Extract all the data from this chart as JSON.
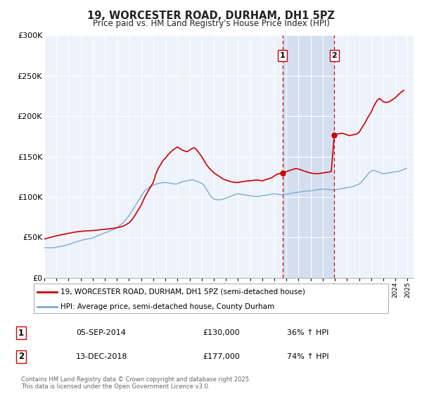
{
  "title": "19, WORCESTER ROAD, DURHAM, DH1 5PZ",
  "subtitle": "Price paid vs. HM Land Registry's House Price Index (HPI)",
  "background_color": "#ffffff",
  "plot_bg_color": "#eef2fa",
  "grid_color": "#ffffff",
  "ylim": [
    0,
    300000
  ],
  "yticks": [
    0,
    50000,
    100000,
    150000,
    200000,
    250000,
    300000
  ],
  "ytick_labels": [
    "£0",
    "£50K",
    "£100K",
    "£150K",
    "£200K",
    "£250K",
    "£300K"
  ],
  "xlim_start": 1995.0,
  "xlim_end": 2025.5,
  "sale1_x": 2014.674,
  "sale1_y": 130000,
  "sale1_label": "1",
  "sale1_date": "05-SEP-2014",
  "sale1_price": "£130,000",
  "sale1_hpi": "36% ↑ HPI",
  "sale2_x": 2018.954,
  "sale2_y": 177000,
  "sale2_label": "2",
  "sale2_date": "13-DEC-2018",
  "sale2_price": "£177,000",
  "sale2_hpi": "74% ↑ HPI",
  "shade_color": "#c8d8ee",
  "vline_color": "#cc0000",
  "marker_color": "#cc0000",
  "red_line_color": "#cc0000",
  "blue_line_color": "#7aadd4",
  "legend_label_red": "19, WORCESTER ROAD, DURHAM, DH1 5PZ (semi-detached house)",
  "legend_label_blue": "HPI: Average price, semi-detached house, County Durham",
  "footnote": "Contains HM Land Registry data © Crown copyright and database right 2025.\nThis data is licensed under the Open Government Licence v3.0.",
  "hpi_years": [
    1995.0,
    1995.08,
    1995.17,
    1995.25,
    1995.33,
    1995.42,
    1995.5,
    1995.58,
    1995.67,
    1995.75,
    1995.83,
    1995.92,
    1996.0,
    1996.08,
    1996.17,
    1996.25,
    1996.33,
    1996.42,
    1996.5,
    1996.58,
    1996.67,
    1996.75,
    1996.83,
    1996.92,
    1997.0,
    1997.08,
    1997.17,
    1997.25,
    1997.33,
    1997.42,
    1997.5,
    1997.58,
    1997.67,
    1997.75,
    1997.83,
    1997.92,
    1998.0,
    1998.08,
    1998.17,
    1998.25,
    1998.33,
    1998.42,
    1998.5,
    1998.58,
    1998.67,
    1998.75,
    1998.83,
    1998.92,
    1999.0,
    1999.08,
    1999.17,
    1999.25,
    1999.33,
    1999.42,
    1999.5,
    1999.58,
    1999.67,
    1999.75,
    1999.83,
    1999.92,
    2000.0,
    2000.08,
    2000.17,
    2000.25,
    2000.33,
    2000.42,
    2000.5,
    2000.58,
    2000.67,
    2000.75,
    2000.83,
    2000.92,
    2001.0,
    2001.08,
    2001.17,
    2001.25,
    2001.33,
    2001.42,
    2001.5,
    2001.58,
    2001.67,
    2001.75,
    2001.83,
    2001.92,
    2002.0,
    2002.08,
    2002.17,
    2002.25,
    2002.33,
    2002.42,
    2002.5,
    2002.58,
    2002.67,
    2002.75,
    2002.83,
    2002.92,
    2003.0,
    2003.08,
    2003.17,
    2003.25,
    2003.33,
    2003.42,
    2003.5,
    2003.58,
    2003.67,
    2003.75,
    2003.83,
    2003.92,
    2004.0,
    2004.08,
    2004.17,
    2004.25,
    2004.33,
    2004.42,
    2004.5,
    2004.58,
    2004.67,
    2004.75,
    2004.83,
    2004.92,
    2005.0,
    2005.08,
    2005.17,
    2005.25,
    2005.33,
    2005.42,
    2005.5,
    2005.58,
    2005.67,
    2005.75,
    2005.83,
    2005.92,
    2006.0,
    2006.08,
    2006.17,
    2006.25,
    2006.33,
    2006.42,
    2006.5,
    2006.58,
    2006.67,
    2006.75,
    2006.83,
    2006.92,
    2007.0,
    2007.08,
    2007.17,
    2007.25,
    2007.33,
    2007.42,
    2007.5,
    2007.58,
    2007.67,
    2007.75,
    2007.83,
    2007.92,
    2008.0,
    2008.08,
    2008.17,
    2008.25,
    2008.33,
    2008.42,
    2008.5,
    2008.58,
    2008.67,
    2008.75,
    2008.83,
    2008.92,
    2009.0,
    2009.08,
    2009.17,
    2009.25,
    2009.33,
    2009.42,
    2009.5,
    2009.58,
    2009.67,
    2009.75,
    2009.83,
    2009.92,
    2010.0,
    2010.08,
    2010.17,
    2010.25,
    2010.33,
    2010.42,
    2010.5,
    2010.58,
    2010.67,
    2010.75,
    2010.83,
    2010.92,
    2011.0,
    2011.08,
    2011.17,
    2011.25,
    2011.33,
    2011.42,
    2011.5,
    2011.58,
    2011.67,
    2011.75,
    2011.83,
    2011.92,
    2012.0,
    2012.08,
    2012.17,
    2012.25,
    2012.33,
    2012.42,
    2012.5,
    2012.58,
    2012.67,
    2012.75,
    2012.83,
    2012.92,
    2013.0,
    2013.08,
    2013.17,
    2013.25,
    2013.33,
    2013.42,
    2013.5,
    2013.58,
    2013.67,
    2013.75,
    2013.83,
    2013.92,
    2014.0,
    2014.08,
    2014.17,
    2014.25,
    2014.33,
    2014.42,
    2014.5,
    2014.58,
    2014.67,
    2014.75,
    2014.83,
    2014.92,
    2015.0,
    2015.08,
    2015.17,
    2015.25,
    2015.33,
    2015.42,
    2015.5,
    2015.58,
    2015.67,
    2015.75,
    2015.83,
    2015.92,
    2016.0,
    2016.08,
    2016.17,
    2016.25,
    2016.33,
    2016.42,
    2016.5,
    2016.58,
    2016.67,
    2016.75,
    2016.83,
    2016.92,
    2017.0,
    2017.08,
    2017.17,
    2017.25,
    2017.33,
    2017.42,
    2017.5,
    2017.58,
    2017.67,
    2017.75,
    2017.83,
    2017.92,
    2018.0,
    2018.08,
    2018.17,
    2018.25,
    2018.33,
    2018.42,
    2018.5,
    2018.58,
    2018.67,
    2018.75,
    2018.83,
    2018.92,
    2019.0,
    2019.08,
    2019.17,
    2019.25,
    2019.33,
    2019.42,
    2019.5,
    2019.58,
    2019.67,
    2019.75,
    2019.83,
    2019.92,
    2020.0,
    2020.08,
    2020.17,
    2020.25,
    2020.33,
    2020.42,
    2020.5,
    2020.58,
    2020.67,
    2020.75,
    2020.83,
    2020.92,
    2021.0,
    2021.08,
    2021.17,
    2021.25,
    2021.33,
    2021.42,
    2021.5,
    2021.58,
    2021.67,
    2021.75,
    2021.83,
    2021.92,
    2022.0,
    2022.08,
    2022.17,
    2022.25,
    2022.33,
    2022.42,
    2022.5,
    2022.58,
    2022.67,
    2022.75,
    2022.83,
    2022.92,
    2023.0,
    2023.08,
    2023.17,
    2023.25,
    2023.33,
    2023.42,
    2023.5,
    2023.58,
    2023.67,
    2023.75,
    2023.83,
    2023.92,
    2024.0,
    2024.08,
    2024.17,
    2024.25,
    2024.33,
    2024.42,
    2024.5,
    2024.58,
    2024.67,
    2024.75,
    2024.83,
    2024.92
  ],
  "hpi_values": [
    37000,
    37100,
    37200,
    37300,
    37200,
    37100,
    37000,
    37100,
    37200,
    37300,
    37400,
    37600,
    38000,
    38200,
    38400,
    38600,
    38800,
    39000,
    39200,
    39500,
    39800,
    40200,
    40500,
    40800,
    41000,
    41500,
    42000,
    42500,
    43000,
    43500,
    44000,
    44300,
    44600,
    45000,
    45300,
    45600,
    46000,
    46400,
    46800,
    47200,
    47500,
    47800,
    48000,
    48200,
    48400,
    48600,
    48800,
    49000,
    49500,
    50000,
    50500,
    51000,
    51500,
    52000,
    52500,
    53000,
    53500,
    54000,
    54500,
    55000,
    55500,
    56000,
    56500,
    57000,
    57500,
    58000,
    58500,
    59000,
    59500,
    60000,
    60500,
    61000,
    62000,
    63000,
    64000,
    65000,
    66000,
    67000,
    68000,
    69500,
    71000,
    72500,
    74000,
    75500,
    77000,
    79000,
    81000,
    83000,
    85000,
    87000,
    89000,
    91000,
    93000,
    95000,
    97000,
    99000,
    101000,
    103000,
    105000,
    107000,
    108000,
    109000,
    110000,
    111000,
    112000,
    113000,
    113500,
    114000,
    114500,
    115000,
    115500,
    116000,
    116500,
    116800,
    117000,
    117200,
    117400,
    117600,
    117800,
    118000,
    118000,
    117800,
    117600,
    117400,
    117200,
    117000,
    116800,
    116600,
    116400,
    116200,
    116000,
    116000,
    116500,
    117000,
    117500,
    118000,
    118500,
    119000,
    119300,
    119600,
    119800,
    120000,
    120200,
    120500,
    121000,
    121000,
    121000,
    121000,
    120800,
    120600,
    120000,
    119500,
    119000,
    118500,
    118000,
    117500,
    117000,
    116000,
    115000,
    113000,
    111000,
    109000,
    107000,
    105000,
    103000,
    101000,
    99500,
    98500,
    97500,
    97000,
    96800,
    96600,
    96500,
    96500,
    96600,
    96800,
    97000,
    97300,
    97600,
    98000,
    98500,
    99000,
    99500,
    100000,
    100500,
    101000,
    101500,
    102000,
    102500,
    103000,
    103500,
    104000,
    104000,
    103800,
    103600,
    103400,
    103200,
    103000,
    102800,
    102600,
    102400,
    102200,
    102000,
    101800,
    101500,
    101300,
    101100,
    101000,
    100900,
    100800,
    100700,
    100700,
    100700,
    100800,
    101000,
    101200,
    101500,
    101800,
    102000,
    102200,
    102400,
    102600,
    102800,
    103000,
    103200,
    103400,
    103600,
    103800,
    104000,
    103800,
    103500,
    103300,
    103100,
    103000,
    102900,
    102800,
    102900,
    103000,
    103200,
    103400,
    103600,
    103800,
    104000,
    104200,
    104400,
    104600,
    104800,
    105000,
    105200,
    105400,
    105600,
    105800,
    106000,
    106200,
    106400,
    106600,
    106800,
    107000,
    107100,
    107200,
    107300,
    107400,
    107500,
    107600,
    107700,
    107900,
    108100,
    108300,
    108500,
    108700,
    108900,
    109100,
    109300,
    109500,
    109700,
    109800,
    109800,
    109700,
    109600,
    109500,
    109400,
    109300,
    109200,
    109100,
    109000,
    108900,
    108800,
    108700,
    109000,
    109200,
    109400,
    109600,
    109800,
    110000,
    110200,
    110400,
    110600,
    110800,
    111000,
    111200,
    111500,
    111800,
    112000,
    112000,
    112000,
    112500,
    113000,
    113500,
    114000,
    114500,
    115000,
    115500,
    116000,
    117000,
    118000,
    119500,
    121000,
    122500,
    124000,
    125500,
    127000,
    128500,
    130000,
    131000,
    132000,
    132500,
    133000,
    133000,
    132500,
    132000,
    131500,
    131000,
    130500,
    130000,
    129500,
    129000,
    129000,
    129000,
    129200,
    129400,
    129600,
    129800,
    130000,
    130200,
    130400,
    130600,
    130800,
    131000,
    131200,
    131400,
    131600,
    131800,
    132000,
    132500,
    133000,
    133500,
    134000,
    134500,
    135000,
    135500
  ],
  "price_years": [
    1995.0,
    1995.5,
    1996.0,
    1996.5,
    1997.0,
    1997.5,
    1998.0,
    1998.5,
    1999.0,
    1999.3,
    1999.6,
    2000.0,
    2000.3,
    2000.6,
    2001.0,
    2001.3,
    2001.6,
    2002.0,
    2002.3,
    2002.6,
    2003.0,
    2003.3,
    2003.6,
    2004.0,
    2004.2,
    2004.4,
    2004.6,
    2004.8,
    2005.0,
    2005.2,
    2005.4,
    2005.6,
    2005.8,
    2006.0,
    2006.2,
    2006.4,
    2006.6,
    2006.8,
    2007.0,
    2007.2,
    2007.4,
    2007.6,
    2007.8,
    2008.0,
    2008.2,
    2008.4,
    2008.6,
    2008.8,
    2009.0,
    2009.2,
    2009.4,
    2009.6,
    2009.8,
    2010.0,
    2010.2,
    2010.4,
    2010.6,
    2010.8,
    2011.0,
    2011.2,
    2011.4,
    2011.6,
    2011.8,
    2012.0,
    2012.2,
    2012.4,
    2012.6,
    2012.8,
    2013.0,
    2013.2,
    2013.4,
    2013.6,
    2013.8,
    2014.0,
    2014.2,
    2014.4,
    2014.674,
    2014.9,
    2015.1,
    2015.3,
    2015.5,
    2015.7,
    2015.9,
    2016.1,
    2016.3,
    2016.5,
    2016.7,
    2016.9,
    2017.1,
    2017.3,
    2017.5,
    2017.7,
    2017.9,
    2018.1,
    2018.3,
    2018.5,
    2018.7,
    2018.954,
    2019.2,
    2019.4,
    2019.6,
    2019.8,
    2020.0,
    2020.2,
    2020.5,
    2020.8,
    2021.0,
    2021.2,
    2021.5,
    2021.7,
    2022.0,
    2022.2,
    2022.5,
    2022.7,
    2023.0,
    2023.2,
    2023.5,
    2023.7,
    2024.0,
    2024.2,
    2024.5,
    2024.7
  ],
  "price_values": [
    48000,
    50000,
    52000,
    53500,
    55000,
    56500,
    57500,
    58000,
    58500,
    58800,
    59500,
    60000,
    60500,
    61000,
    62000,
    63000,
    64500,
    68000,
    73000,
    80000,
    90000,
    100000,
    108000,
    118000,
    128000,
    135000,
    140000,
    145000,
    148000,
    152000,
    155000,
    158000,
    160000,
    162000,
    160000,
    158000,
    157000,
    156000,
    158000,
    160000,
    161000,
    158000,
    154000,
    150000,
    145000,
    140000,
    136000,
    133000,
    130000,
    128000,
    126000,
    124000,
    122000,
    121000,
    120000,
    119000,
    118500,
    118000,
    118000,
    118500,
    119000,
    119500,
    120000,
    120000,
    120500,
    121000,
    121000,
    120500,
    120000,
    121000,
    122000,
    123000,
    124000,
    126000,
    128000,
    129000,
    130000,
    131000,
    132000,
    133000,
    134000,
    135000,
    135000,
    134000,
    133000,
    132000,
    131000,
    130000,
    129500,
    129000,
    129000,
    129000,
    129500,
    130000,
    130500,
    131000,
    131500,
    177000,
    178000,
    178500,
    179000,
    178000,
    177000,
    176000,
    177000,
    178000,
    180000,
    185000,
    192000,
    198000,
    205000,
    212000,
    220000,
    222000,
    218000,
    217000,
    218000,
    220000,
    223000,
    226000,
    230000,
    232000
  ]
}
